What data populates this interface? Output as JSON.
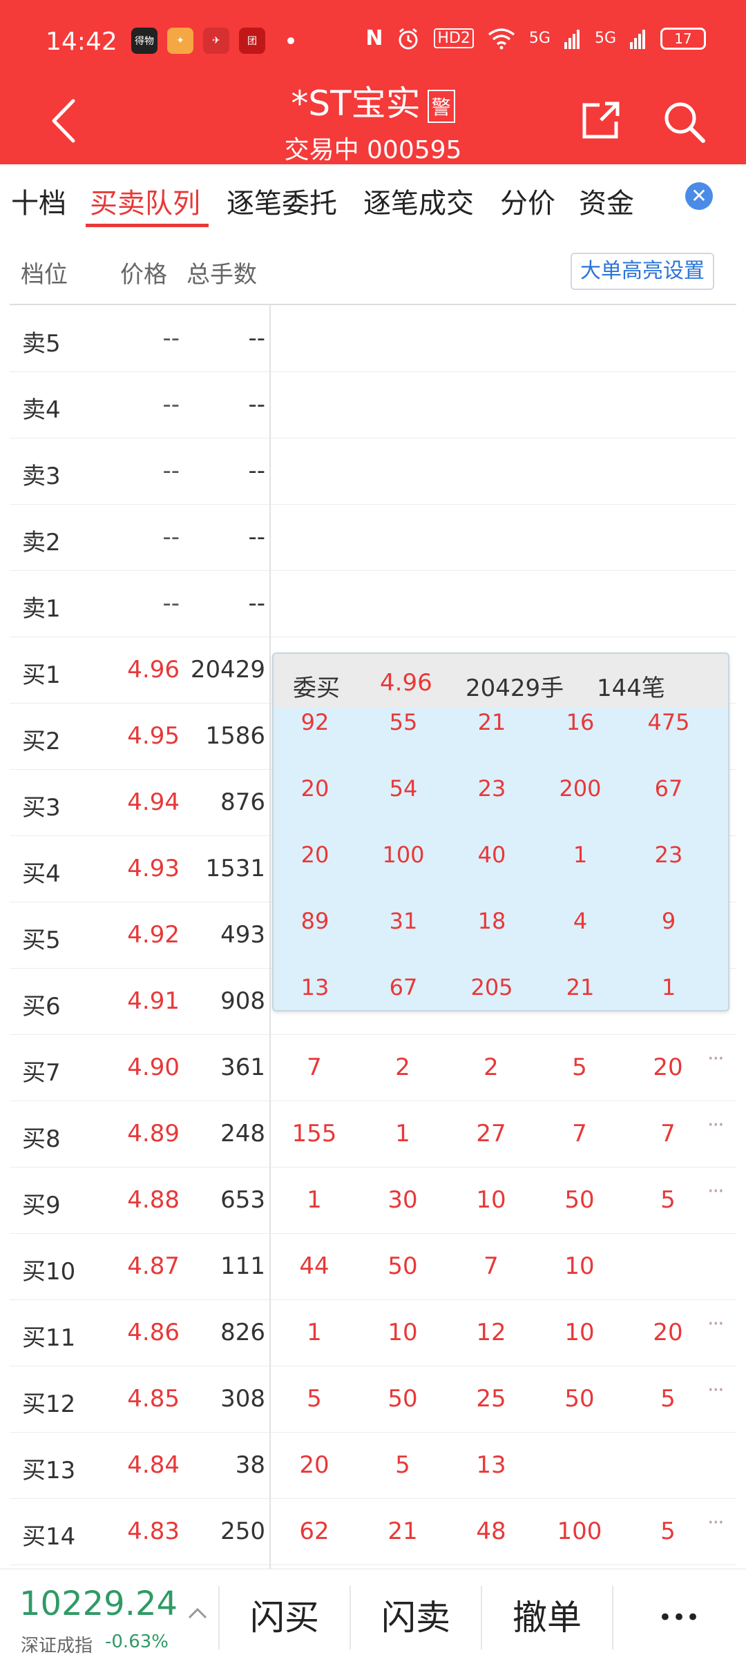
{
  "status_bar": {
    "time": "14:42",
    "app_icons": [
      {
        "label": "得物",
        "color": "#222222"
      },
      {
        "label": "✦",
        "color": "#f4a742"
      },
      {
        "label": "✈",
        "color": "#d63030"
      },
      {
        "label": "团",
        "color": "#c01818"
      }
    ],
    "nfc": "N",
    "hd": "HD2",
    "signal1": "5G",
    "signal2": "5G",
    "battery": "17"
  },
  "header": {
    "title": "*ST宝实",
    "warn_badge": "警",
    "subtitle": "交易中 000595"
  },
  "tabs": [
    {
      "label": "十档"
    },
    {
      "label": "买卖队列"
    },
    {
      "label": "逐笔委托"
    },
    {
      "label": "逐笔成交"
    },
    {
      "label": "分价"
    },
    {
      "label": "资金"
    }
  ],
  "close_tab": "✕",
  "columns": {
    "level": "档位",
    "price": "价格",
    "total": "总手数"
  },
  "highlight_button": "大单高亮设置",
  "rows": [
    {
      "level": "卖5",
      "price": "--",
      "total": "--",
      "orders": []
    },
    {
      "level": "卖4",
      "price": "--",
      "total": "--",
      "orders": []
    },
    {
      "level": "卖3",
      "price": "--",
      "total": "--",
      "orders": []
    },
    {
      "level": "卖2",
      "price": "--",
      "total": "--",
      "orders": []
    },
    {
      "level": "卖1",
      "price": "--",
      "total": "--",
      "orders": []
    },
    {
      "level": "买1",
      "price": "4.96",
      "total": "20429",
      "orders": []
    },
    {
      "level": "买2",
      "price": "4.95",
      "total": "1586",
      "orders": []
    },
    {
      "level": "买3",
      "price": "4.94",
      "total": "876",
      "orders": []
    },
    {
      "level": "买4",
      "price": "4.93",
      "total": "1531",
      "orders": []
    },
    {
      "level": "买5",
      "price": "4.92",
      "total": "493",
      "orders": []
    },
    {
      "level": "买6",
      "price": "4.91",
      "total": "908",
      "orders": []
    },
    {
      "level": "买7",
      "price": "4.90",
      "total": "361",
      "orders": [
        "7",
        "2",
        "2",
        "5",
        "20"
      ],
      "more": "···"
    },
    {
      "level": "买8",
      "price": "4.89",
      "total": "248",
      "orders": [
        "155",
        "1",
        "27",
        "7",
        "7"
      ],
      "more": "···"
    },
    {
      "level": "买9",
      "price": "4.88",
      "total": "653",
      "orders": [
        "1",
        "30",
        "10",
        "50",
        "5"
      ],
      "more": "···"
    },
    {
      "level": "买10",
      "price": "4.87",
      "total": "111",
      "orders": [
        "44",
        "50",
        "7",
        "10"
      ]
    },
    {
      "level": "买11",
      "price": "4.86",
      "total": "826",
      "orders": [
        "1",
        "10",
        "12",
        "10",
        "20"
      ],
      "more": "···"
    },
    {
      "level": "买12",
      "price": "4.85",
      "total": "308",
      "orders": [
        "5",
        "50",
        "25",
        "50",
        "5"
      ],
      "more": "···"
    },
    {
      "level": "买13",
      "price": "4.84",
      "total": "38",
      "orders": [
        "20",
        "5",
        "13"
      ]
    },
    {
      "level": "买14",
      "price": "4.83",
      "total": "250",
      "orders": [
        "62",
        "21",
        "48",
        "100",
        "5"
      ],
      "more": "···"
    }
  ],
  "popup": {
    "label": "委买",
    "price": "4.96",
    "volume": "20429手",
    "count": "144笔",
    "grid": [
      [
        "92",
        "55",
        "21",
        "16",
        "475"
      ],
      [
        "20",
        "54",
        "23",
        "200",
        "67"
      ],
      [
        "20",
        "100",
        "40",
        "1",
        "23"
      ],
      [
        "89",
        "31",
        "18",
        "4",
        "9"
      ],
      [
        "13",
        "67",
        "205",
        "21",
        "1"
      ]
    ]
  },
  "bottom": {
    "index_value": "10229.24",
    "index_name": "深证成指",
    "index_change": "-0.63%",
    "buttons": [
      "闪买",
      "闪卖",
      "撤单",
      "•••"
    ]
  },
  "colors": {
    "header_bg": "#f53a3a",
    "price_red": "#e83838",
    "index_green": "#2f9a66",
    "popup_bg": "#dcf0fb",
    "link_blue": "#2a74d8"
  }
}
